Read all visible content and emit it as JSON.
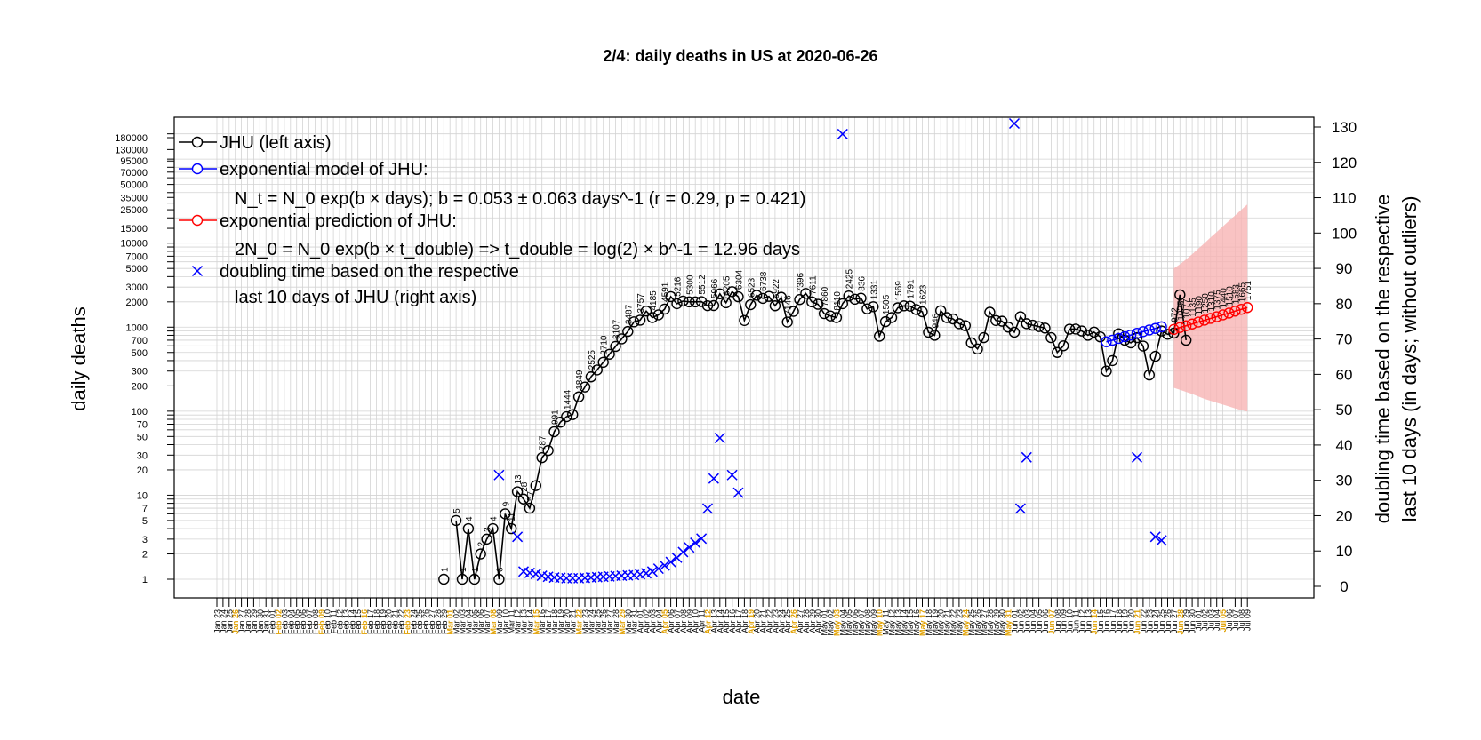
{
  "chart_data": {
    "type": "line",
    "title": "2/4: daily deaths in US at 2020-06-26",
    "xlabel": "date",
    "ylabel_left": "daily deaths",
    "ylabel_right_line1": "doubling time based on the respective",
    "ylabel_right_line2": "last 10 days (in days; without outliers)",
    "x_range": [
      "2020-01-23",
      "2020-07-09"
    ],
    "y_left_scale": "log",
    "y_left_range": [
      1,
      200000
    ],
    "y_left_ticks": [
      1,
      2,
      3,
      5,
      7,
      10,
      20,
      30,
      50,
      70,
      100,
      200,
      300,
      500,
      700,
      1000,
      2000,
      3000,
      5000,
      7000,
      10000,
      15000,
      25000,
      35000,
      50000,
      70000,
      95000,
      130000,
      180000
    ],
    "y_right_range": [
      0,
      130
    ],
    "y_right_ticks": [
      0,
      10,
      20,
      30,
      40,
      50,
      60,
      70,
      80,
      90,
      100,
      110,
      120,
      130
    ],
    "grid": true,
    "legend_position": "top-left",
    "legend": [
      {
        "marker": "circle",
        "color": "#000000",
        "label": "JHU (left axis)"
      },
      {
        "marker": "circle",
        "color": "#0000ff",
        "label": "exponential model of JHU:"
      },
      {
        "marker": "none",
        "label": "N_t = N_0 exp(b × days); b = 0.053 ± 0.063 days^-1 (r = 0.29, p = 0.421)"
      },
      {
        "marker": "circle",
        "color": "#ff0000",
        "label": "exponential prediction of JHU:"
      },
      {
        "marker": "none",
        "label": "2N_0 = N_0 exp(b × t_double) => t_double = log(2) × b^-1 = 12.96 days"
      },
      {
        "marker": "cross",
        "color": "#0000ff",
        "label": "doubling time based on the respective"
      },
      {
        "marker": "none",
        "label": "last 10 days of JHU (right axis)"
      }
    ],
    "series": [
      {
        "name": "JHU (left axis)",
        "color": "#000000",
        "start_date": "2020-02-29",
        "values": [
          1,
          null,
          5,
          1,
          4,
          1,
          2,
          3,
          4,
          1,
          6,
          4,
          11,
          9,
          7,
          13,
          28,
          34,
          57,
          74,
          86,
          91,
          148,
          194,
          256,
          310,
          382,
          476,
          590,
          726,
          889,
          1156,
          1210,
          1552,
          1300,
          1400,
          1640,
          2305,
          1900,
          2045,
          2000,
          2000,
          2012,
          1800,
          1806,
          2493,
          1950,
          2645,
          2300,
          1200,
          1850,
          2396,
          2200,
          2320,
          1795,
          2269,
          1150,
          1540,
          2130,
          2520,
          2000,
          1870,
          1450,
          1360,
          1300,
          1900,
          2350,
          2150,
          2211,
          1650,
          1750,
          780,
          1162,
          1300,
          1700,
          1791,
          1777,
          1623,
          1524,
          870,
          800,
          1569,
          1300,
          1253,
          1100,
          1043,
          650,
          550,
          750,
          1505,
          1200,
          1176,
          1000,
          871,
          1331,
          1100,
          1055,
          1015,
          975,
          750,
          500,
          600,
          946,
          950,
          900,
          800,
          874,
          767,
          300,
          400,
          836,
          700,
          650,
          750,
          596,
          270,
          450,
          900,
          822,
          850,
          2425,
          700
        ],
        "data_labels_shown": [
          "1",
          "5",
          "1",
          "4",
          "1",
          "2",
          "3",
          "4",
          "6",
          "9",
          "11",
          "13",
          "28",
          "57",
          "787",
          "991",
          "1444",
          "1849",
          "2525",
          "2710",
          "3107",
          "3487",
          "3757",
          "4185",
          "4591",
          "5216",
          "5300",
          "5512",
          "5966",
          "6205",
          "6304",
          "6523",
          "6738",
          "6922",
          "7146",
          "7396",
          "7611",
          "7860",
          "8110",
          "2425",
          "836",
          "1331",
          "1505",
          "1569",
          "1791",
          "1623",
          "946"
        ]
      },
      {
        "name": "exponential model of JHU:",
        "color": "#0000ff",
        "start_date": "2020-06-16",
        "values": [
          670,
          700,
          735,
          770,
          805,
          845,
          885,
          925,
          965,
          1010
        ]
      },
      {
        "name": "exponential prediction of JHU:",
        "color": "#ff0000",
        "start_date": "2020-06-27",
        "values": [
          940,
          990,
          1040,
          1090,
          1150,
          1210,
          1270,
          1330,
          1400,
          1470,
          1550,
          1630,
          1710
        ],
        "data_labels": [
          "972",
          "1025",
          "1077",
          "1135",
          "1190",
          "1250",
          "1310",
          "1375",
          "1440",
          "1510",
          "1583",
          "1665",
          "1751"
        ],
        "ci_upper": [
          5000,
          5600,
          6400,
          7400,
          8600,
          10000,
          11700,
          13600,
          15800,
          18400,
          21400,
          25000,
          29000
        ],
        "ci_lower": [
          190,
          180,
          170,
          160,
          150,
          140,
          133,
          126,
          120,
          114,
          108,
          103,
          99
        ]
      },
      {
        "name": "doubling time based on the respective",
        "color": "#0000ff",
        "axis": "right",
        "points": [
          [
            "2020-03-09",
            31.5
          ],
          [
            "2020-03-12",
            14
          ],
          [
            "2020-03-13",
            4.2
          ],
          [
            "2020-03-14",
            3.8
          ],
          [
            "2020-03-15",
            3.5
          ],
          [
            "2020-03-16",
            3.0
          ],
          [
            "2020-03-17",
            2.7
          ],
          [
            "2020-03-18",
            2.5
          ],
          [
            "2020-03-19",
            2.4
          ],
          [
            "2020-03-20",
            2.3
          ],
          [
            "2020-03-21",
            2.3
          ],
          [
            "2020-03-22",
            2.3
          ],
          [
            "2020-03-23",
            2.4
          ],
          [
            "2020-03-24",
            2.5
          ],
          [
            "2020-03-25",
            2.6
          ],
          [
            "2020-03-26",
            2.7
          ],
          [
            "2020-03-27",
            2.8
          ],
          [
            "2020-03-28",
            2.9
          ],
          [
            "2020-03-29",
            3.0
          ],
          [
            "2020-03-30",
            3.1
          ],
          [
            "2020-03-31",
            3.2
          ],
          [
            "2020-04-01",
            3.4
          ],
          [
            "2020-04-02",
            3.7
          ],
          [
            "2020-04-03",
            4.2
          ],
          [
            "2020-04-04",
            5.0
          ],
          [
            "2020-04-05",
            5.9
          ],
          [
            "2020-04-06",
            6.9
          ],
          [
            "2020-04-07",
            8.1
          ],
          [
            "2020-04-08",
            9.7
          ],
          [
            "2020-04-09",
            11.0
          ],
          [
            "2020-04-10",
            12.3
          ],
          [
            "2020-04-11",
            13.5
          ],
          [
            "2020-04-12",
            22
          ],
          [
            "2020-04-13",
            30.5
          ],
          [
            "2020-04-14",
            42
          ],
          [
            "2020-04-16",
            31.5
          ],
          [
            "2020-04-17",
            26.5
          ],
          [
            "2020-05-04",
            128
          ],
          [
            "2020-06-01",
            131
          ],
          [
            "2020-06-02",
            22
          ],
          [
            "2020-06-03",
            36.5
          ],
          [
            "2020-06-21",
            36.5
          ],
          [
            "2020-06-24",
            14
          ],
          [
            "2020-06-25",
            13
          ]
        ]
      }
    ]
  }
}
